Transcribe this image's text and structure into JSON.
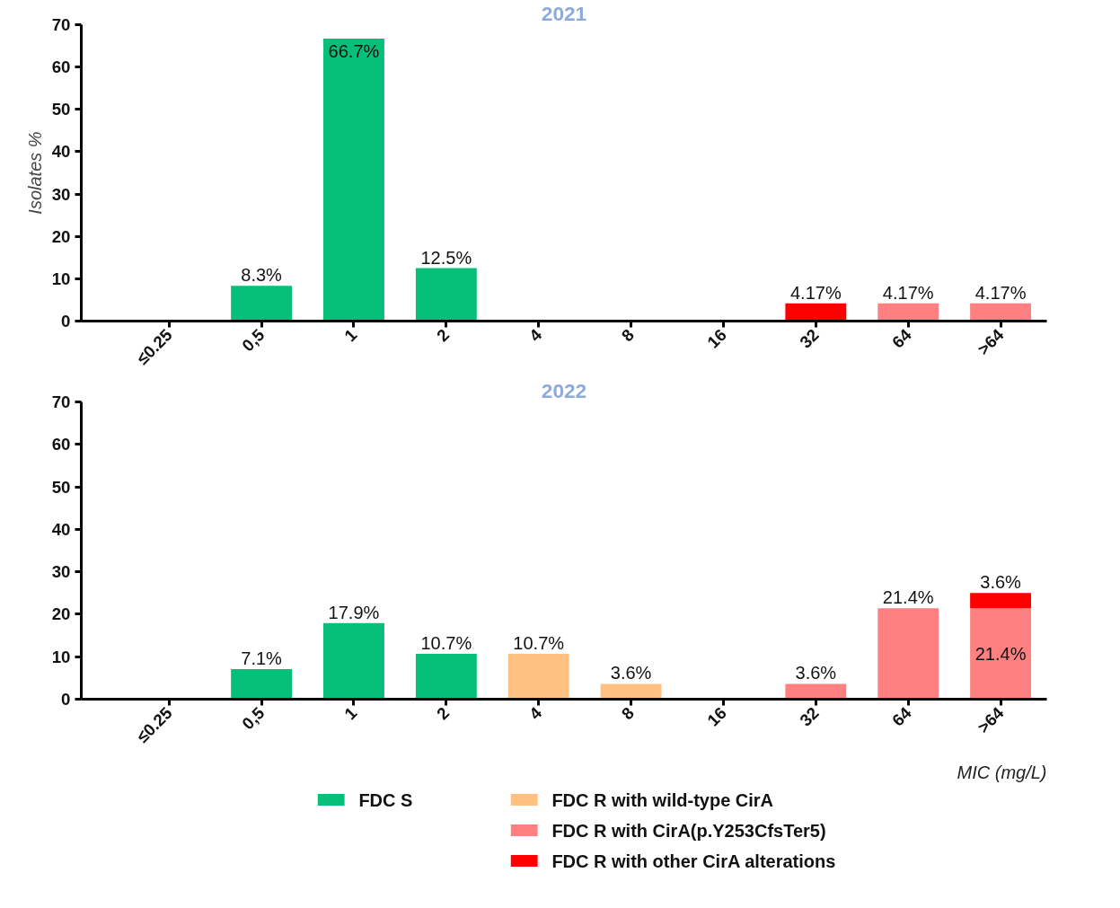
{
  "chart_data": [
    {
      "type": "bar",
      "title": "2021",
      "ylabel": "Isolates %",
      "stacked": true,
      "categories": [
        "≤0.25",
        "0,5",
        "1",
        "2",
        "4",
        "8",
        "16",
        "32",
        "64",
        ">64"
      ],
      "ylim": [
        0,
        70
      ],
      "yticks": [
        0,
        10,
        20,
        30,
        40,
        50,
        60,
        70
      ],
      "legend": false,
      "series": [
        {
          "color": "#06bf78",
          "values": [
            null,
            8.3,
            66.7,
            12.5,
            null,
            null,
            null,
            null,
            null,
            null
          ],
          "value_labels": [
            null,
            "8.3%",
            "66.7%",
            "12.5%",
            null,
            null,
            null,
            null,
            null,
            null
          ]
        },
        {
          "color": "#ffc080",
          "values": [
            null,
            null,
            null,
            null,
            null,
            null,
            null,
            null,
            null,
            null
          ],
          "value_labels": [
            null,
            null,
            null,
            null,
            null,
            null,
            null,
            null,
            null,
            null
          ]
        },
        {
          "color": "#ff8080",
          "values": [
            null,
            null,
            null,
            null,
            null,
            null,
            null,
            null,
            4.17,
            4.17
          ],
          "value_labels": [
            null,
            null,
            null,
            null,
            null,
            null,
            null,
            null,
            "4.17%",
            "4.17%"
          ]
        },
        {
          "color": "#ff0000",
          "values": [
            null,
            null,
            null,
            null,
            null,
            null,
            null,
            4.17,
            null,
            null
          ],
          "value_labels": [
            null,
            null,
            null,
            null,
            null,
            null,
            null,
            "4.17%",
            null,
            null
          ]
        }
      ]
    },
    {
      "type": "bar",
      "title": "2022",
      "xlabel": "MIC (mg/L)",
      "stacked": true,
      "categories": [
        "≤0.25",
        "0,5",
        "1",
        "2",
        "4",
        "8",
        "16",
        "32",
        "64",
        ">64"
      ],
      "ylim": [
        0,
        70
      ],
      "yticks": [
        0,
        10,
        20,
        30,
        40,
        50,
        60,
        70
      ],
      "legend": "bottom",
      "series": [
        {
          "name": "FDC S",
          "color": "#06bf78",
          "values": [
            null,
            7.1,
            17.9,
            10.7,
            null,
            null,
            null,
            null,
            null,
            null
          ],
          "value_labels": [
            null,
            "7.1%",
            "17.9%",
            "10.7%",
            null,
            null,
            null,
            null,
            null,
            null
          ]
        },
        {
          "name": "FDC R with wild-type CirA",
          "color": "#ffc080",
          "values": [
            null,
            null,
            null,
            null,
            10.7,
            3.6,
            null,
            null,
            null,
            null
          ],
          "value_labels": [
            null,
            null,
            null,
            null,
            "10.7%",
            "3.6%",
            null,
            null,
            null,
            null
          ]
        },
        {
          "name": "FDC R with CirA(p.Y253CfsTer5)",
          "color": "#ff8080",
          "values": [
            null,
            null,
            null,
            null,
            null,
            null,
            null,
            3.6,
            21.4,
            21.4
          ],
          "value_labels": [
            null,
            null,
            null,
            null,
            null,
            null,
            null,
            "3.6%",
            "21.4%",
            "21.4%"
          ]
        },
        {
          "name": "FDC R with other CirA alterations",
          "color": "#ff0000",
          "values": [
            null,
            null,
            null,
            null,
            null,
            null,
            null,
            null,
            null,
            3.6
          ],
          "value_labels": [
            null,
            null,
            null,
            null,
            null,
            null,
            null,
            null,
            null,
            "3.6%"
          ]
        }
      ]
    }
  ]
}
